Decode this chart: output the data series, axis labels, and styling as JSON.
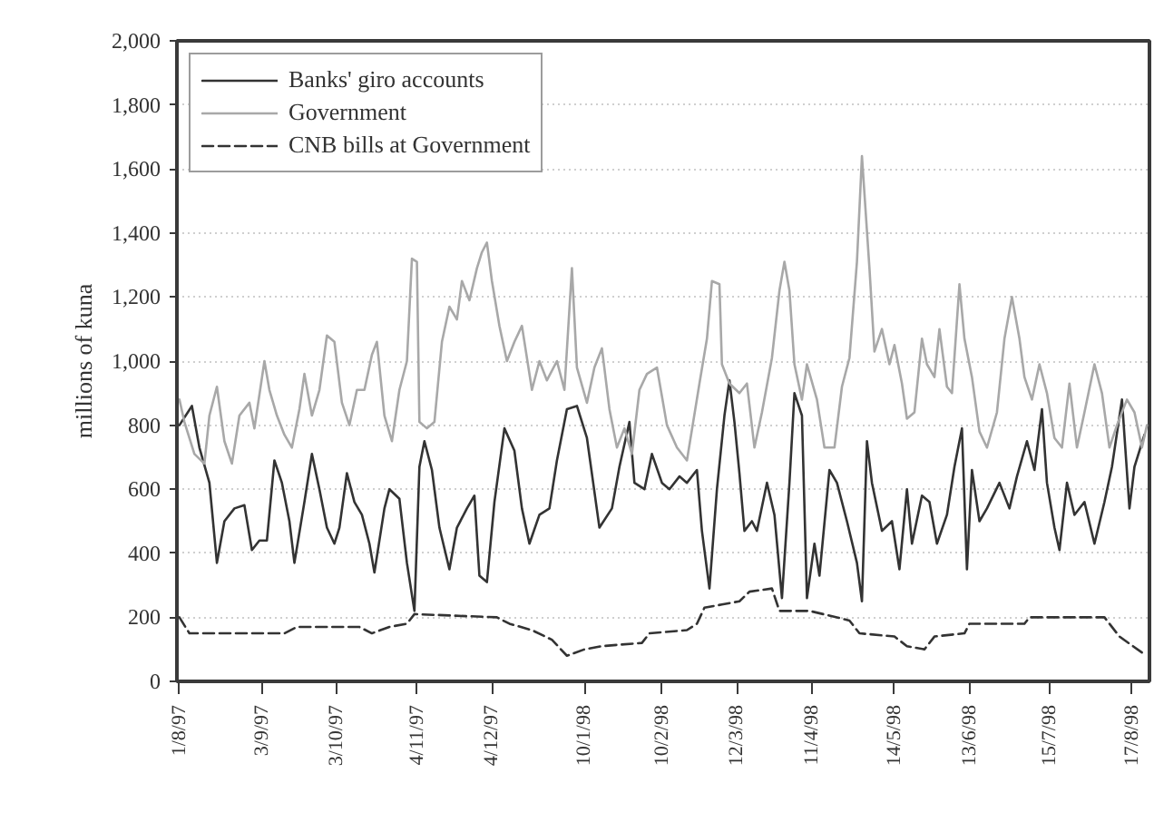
{
  "chart_data": {
    "type": "line",
    "ylabel": "millions of kuna",
    "xlim": [
      "1997-07-31",
      "1998-08-24"
    ],
    "xticks": [
      {
        "value": "1997-08-01",
        "label": "1/8/97"
      },
      {
        "value": "1997-09-03",
        "label": "3/9/97"
      },
      {
        "value": "1997-10-03",
        "label": "3/10/97"
      },
      {
        "value": "1997-11-04",
        "label": "4/11/97"
      },
      {
        "value": "1997-12-04",
        "label": "4/12/97"
      },
      {
        "value": "1998-01-10",
        "label": "10/1/98"
      },
      {
        "value": "1998-02-10",
        "label": "10/2/98"
      },
      {
        "value": "1998-03-12",
        "label": "12/3/98"
      },
      {
        "value": "1998-04-11",
        "label": "11/4/98"
      },
      {
        "value": "1998-05-14",
        "label": "14/5/98"
      },
      {
        "value": "1998-06-13",
        "label": "13/6/98"
      },
      {
        "value": "1998-07-15",
        "label": "15/7/98"
      },
      {
        "value": "1998-08-17",
        "label": "17/8/98"
      }
    ],
    "ylim": [
      0,
      2000
    ],
    "yticks": [
      0,
      200,
      400,
      600,
      800,
      {
        "value": 1000,
        "label": "1,000"
      },
      {
        "value": 1200,
        "label": "1,200"
      },
      {
        "value": 1400,
        "label": "1,400"
      },
      {
        "value": 1600,
        "label": "1,600"
      },
      {
        "value": 1800,
        "label": "1,800"
      },
      {
        "value": 2000,
        "label": "2,000"
      }
    ],
    "grid": "y",
    "legend": "top left",
    "line_style": "solid",
    "series": [
      {
        "name": "Banks' giro accounts",
        "color": "#333333",
        "x": [
          "1997-08-01",
          "1997-08-06",
          "1997-08-09",
          "1997-08-13",
          "1997-08-16",
          "1997-08-19",
          "1997-08-23",
          "1997-08-27",
          "1997-08-30",
          "1997-09-02",
          "1997-09-05",
          "1997-09-08",
          "1997-09-11",
          "1997-09-14",
          "1997-09-16",
          "1997-09-20",
          "1997-09-23",
          "1997-09-26",
          "1997-09-29",
          "1997-10-02",
          "1997-10-04",
          "1997-10-07",
          "1997-10-10",
          "1997-10-13",
          "1997-10-16",
          "1997-10-18",
          "1997-10-22",
          "1997-10-24",
          "1997-10-28",
          "1997-10-31",
          "1997-11-03",
          "1997-11-05",
          "1997-11-07",
          "1997-11-10",
          "1997-11-13",
          "1997-11-17",
          "1997-11-20",
          "1997-11-24",
          "1997-11-27",
          "1997-11-29",
          "1997-12-02",
          "1997-12-05",
          "1997-12-09",
          "1997-12-13",
          "1997-12-16",
          "1997-12-19",
          "1997-12-23",
          "1997-12-27",
          "1997-12-30",
          "1998-01-03",
          "1998-01-07",
          "1998-01-11",
          "1998-01-16",
          "1998-01-21",
          "1998-01-24",
          "1998-01-28",
          "1998-01-30",
          "1998-02-03",
          "1998-02-06",
          "1998-02-10",
          "1998-02-13",
          "1998-02-17",
          "1998-02-20",
          "1998-02-24",
          "1998-02-26",
          "1998-03-01",
          "1998-03-04",
          "1998-03-07",
          "1998-03-09",
          "1998-03-11",
          "1998-03-13",
          "1998-03-15",
          "1998-03-18",
          "1998-03-20",
          "1998-03-24",
          "1998-03-27",
          "1998-03-30",
          "1998-04-02",
          "1998-04-04",
          "1998-04-07",
          "1998-04-09",
          "1998-04-12",
          "1998-04-14",
          "1998-04-18",
          "1998-04-21",
          "1998-04-25",
          "1998-04-29",
          "1998-05-01",
          "1998-05-03",
          "1998-05-05",
          "1998-05-09",
          "1998-05-13",
          "1998-05-16",
          "1998-05-19",
          "1998-05-21",
          "1998-05-25",
          "1998-05-28",
          "1998-05-31",
          "1998-06-04",
          "1998-06-07",
          "1998-06-10",
          "1998-06-12",
          "1998-06-14",
          "1998-06-17",
          "1998-06-20",
          "1998-06-25",
          "1998-06-29",
          "1998-07-02",
          "1998-07-06",
          "1998-07-09",
          "1998-07-12",
          "1998-07-14",
          "1998-07-17",
          "1998-07-19",
          "1998-07-22",
          "1998-07-25",
          "1998-07-29",
          "1998-08-02",
          "1998-08-06",
          "1998-08-09",
          "1998-08-13",
          "1998-08-16",
          "1998-08-18",
          "1998-08-22"
        ],
        "values": [
          800,
          860,
          730,
          620,
          370,
          500,
          540,
          550,
          410,
          440,
          440,
          690,
          620,
          500,
          370,
          560,
          710,
          600,
          480,
          430,
          480,
          650,
          560,
          520,
          430,
          340,
          540,
          600,
          570,
          370,
          220,
          670,
          750,
          660,
          480,
          350,
          480,
          540,
          580,
          330,
          310,
          560,
          790,
          720,
          540,
          430,
          520,
          540,
          690,
          850,
          860,
          760,
          480,
          540,
          670,
          810,
          620,
          600,
          710,
          620,
          600,
          640,
          620,
          660,
          470,
          290,
          600,
          830,
          940,
          810,
          650,
          470,
          500,
          470,
          620,
          520,
          260,
          620,
          900,
          830,
          260,
          430,
          330,
          660,
          620,
          500,
          370,
          250,
          750,
          620,
          470,
          500,
          350,
          600,
          430,
          580,
          560,
          430,
          520,
          670,
          790,
          350,
          660,
          500,
          540,
          620,
          540,
          640,
          750,
          660,
          850,
          620,
          480,
          410,
          620,
          520,
          560,
          430,
          560,
          670,
          880,
          540,
          670,
          770
        ]
      },
      {
        "name": "Government",
        "color": "#a8a8a8",
        "x": [
          "1997-08-01",
          "1997-08-03",
          "1997-08-07",
          "1997-08-11",
          "1997-08-13",
          "1997-08-16",
          "1997-08-19",
          "1997-08-22",
          "1997-08-25",
          "1997-08-29",
          "1997-08-31",
          "1997-09-04",
          "1997-09-06",
          "1997-09-09",
          "1997-09-12",
          "1997-09-15",
          "1997-09-18",
          "1997-09-20",
          "1997-09-23",
          "1997-09-26",
          "1997-09-29",
          "1997-10-02",
          "1997-10-05",
          "1997-10-08",
          "1997-10-11",
          "1997-10-14",
          "1997-10-17",
          "1997-10-19",
          "1997-10-22",
          "1997-10-25",
          "1997-10-28",
          "1997-10-31",
          "1997-11-02",
          "1997-11-04",
          "1997-11-05",
          "1997-11-08",
          "1997-11-11",
          "1997-11-14",
          "1997-11-17",
          "1997-11-20",
          "1997-11-22",
          "1997-11-25",
          "1997-11-28",
          "1997-11-30",
          "1997-12-02",
          "1997-12-04",
          "1997-12-07",
          "1997-12-10",
          "1997-12-13",
          "1997-12-16",
          "1997-12-20",
          "1997-12-23",
          "1997-12-26",
          "1997-12-30",
          "1998-01-02",
          "1998-01-05",
          "1998-01-07",
          "1998-01-11",
          "1998-01-14",
          "1998-01-17",
          "1998-01-20",
          "1998-01-23",
          "1998-01-26",
          "1998-01-29",
          "1998-02-01",
          "1998-02-04",
          "1998-02-08",
          "1998-02-10",
          "1998-02-12",
          "1998-02-16",
          "1998-02-20",
          "1998-02-25",
          "1998-02-28",
          "1998-03-02",
          "1998-03-05",
          "1998-03-06",
          "1998-03-09",
          "1998-03-13",
          "1998-03-16",
          "1998-03-19",
          "1998-03-22",
          "1998-03-26",
          "1998-03-29",
          "1998-03-31",
          "1998-04-02",
          "1998-04-04",
          "1998-04-07",
          "1998-04-09",
          "1998-04-13",
          "1998-04-16",
          "1998-04-20",
          "1998-04-23",
          "1998-04-26",
          "1998-04-29",
          "1998-05-01",
          "1998-05-04",
          "1998-05-06",
          "1998-05-09",
          "1998-05-12",
          "1998-05-14",
          "1998-05-17",
          "1998-05-19",
          "1998-05-22",
          "1998-05-25",
          "1998-05-27",
          "1998-05-30",
          "1998-06-01",
          "1998-06-04",
          "1998-06-06",
          "1998-06-09",
          "1998-06-11",
          "1998-06-14",
          "1998-06-17",
          "1998-06-20",
          "1998-06-24",
          "1998-06-27",
          "1998-06-30",
          "1998-07-03",
          "1998-07-05",
          "1998-07-08",
          "1998-07-11",
          "1998-07-14",
          "1998-07-17",
          "1998-07-20",
          "1998-07-23",
          "1998-07-26",
          "1998-07-29",
          "1998-08-02",
          "1998-08-05",
          "1998-08-08",
          "1998-08-11",
          "1998-08-15",
          "1998-08-18",
          "1998-08-21",
          "1998-08-23"
        ],
        "values": [
          880,
          810,
          710,
          680,
          830,
          920,
          750,
          680,
          830,
          870,
          790,
          1000,
          910,
          830,
          770,
          730,
          850,
          960,
          830,
          910,
          1080,
          1060,
          870,
          800,
          910,
          910,
          1020,
          1060,
          830,
          750,
          910,
          1000,
          1320,
          1310,
          810,
          790,
          810,
          1060,
          1170,
          1130,
          1250,
          1190,
          1290,
          1340,
          1370,
          1250,
          1110,
          1000,
          1060,
          1110,
          910,
          1000,
          940,
          1000,
          910,
          1290,
          980,
          870,
          980,
          1040,
          850,
          730,
          790,
          710,
          910,
          960,
          980,
          890,
          800,
          730,
          690,
          930,
          1070,
          1250,
          1240,
          990,
          930,
          900,
          930,
          730,
          840,
          1010,
          1220,
          1310,
          1220,
          990,
          880,
          990,
          880,
          730,
          730,
          920,
          1010,
          1310,
          1640,
          1290,
          1030,
          1100,
          990,
          1050,
          930,
          820,
          840,
          1070,
          990,
          950,
          1100,
          920,
          900,
          1240,
          1070,
          950,
          780,
          730,
          840,
          1070,
          1200,
          1070,
          950,
          880,
          990,
          900,
          760,
          730,
          930,
          730,
          840,
          990,
          900,
          730,
          800,
          880,
          840,
          730,
          800
        ]
      },
      {
        "name": "CNB bills at Government",
        "color": "#333333",
        "line_style": "dashed",
        "x": [
          "1997-08-01",
          "1997-08-05",
          "1997-09-12",
          "1997-09-17",
          "1997-10-12",
          "1997-10-17",
          "1997-10-24",
          "1997-10-31",
          "1997-11-03",
          "1997-12-06",
          "1997-12-11",
          "1997-12-20",
          "1997-12-28",
          "1998-01-03",
          "1998-01-10",
          "1998-01-17",
          "1998-02-02",
          "1998-02-05",
          "1998-02-20",
          "1998-02-24",
          "1998-02-27",
          "1998-03-06",
          "1998-03-13",
          "1998-03-17",
          "1998-03-26",
          "1998-03-29",
          "1998-04-10",
          "1998-04-21",
          "1998-04-26",
          "1998-04-30",
          "1998-05-14",
          "1998-05-19",
          "1998-05-26",
          "1998-05-30",
          "1998-06-11",
          "1998-06-13",
          "1998-07-05",
          "1998-07-07",
          "1998-08-06",
          "1998-08-12",
          "1998-08-21",
          "1998-08-23"
        ],
        "values": [
          200,
          150,
          150,
          170,
          170,
          150,
          170,
          180,
          210,
          200,
          180,
          160,
          130,
          80,
          100,
          110,
          120,
          150,
          160,
          180,
          230,
          240,
          250,
          280,
          290,
          220,
          220,
          200,
          190,
          150,
          140,
          110,
          100,
          140,
          150,
          180,
          180,
          200,
          200,
          140,
          90,
          90
        ]
      }
    ]
  }
}
